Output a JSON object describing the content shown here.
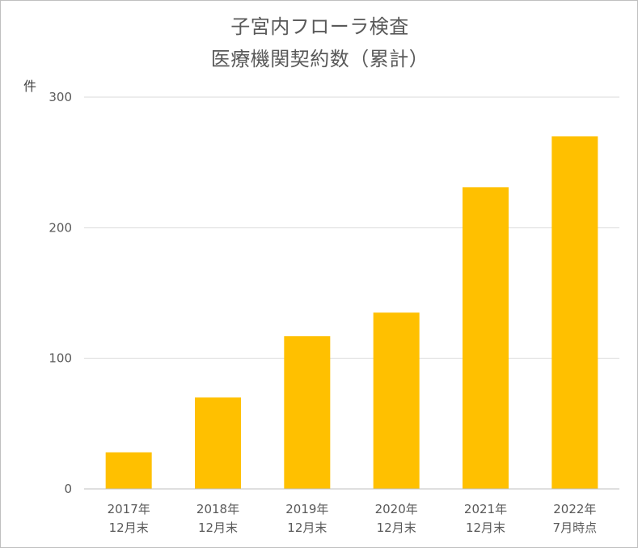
{
  "chart_data": {
    "type": "bar",
    "title_lines": [
      "子宮内フローラ検査",
      "医療機関契約数（累計）"
    ],
    "unit": "件",
    "categories": [
      [
        "2017年",
        "12月末"
      ],
      [
        "2018年",
        "12月末"
      ],
      [
        "2019年",
        "12月末"
      ],
      [
        "2020年",
        "12月末"
      ],
      [
        "2021年",
        "12月末"
      ],
      [
        "2022年",
        "7月時点"
      ]
    ],
    "values": [
      28,
      70,
      117,
      135,
      231,
      270
    ],
    "yticks": [
      0,
      100,
      200,
      300
    ],
    "ylim": [
      0,
      300
    ],
    "grid": true,
    "legend": "none",
    "colors": {
      "bar": "#FFC000",
      "grid": "#d9d9d9",
      "axis": "#bfbfbf",
      "text": "#595959"
    }
  }
}
